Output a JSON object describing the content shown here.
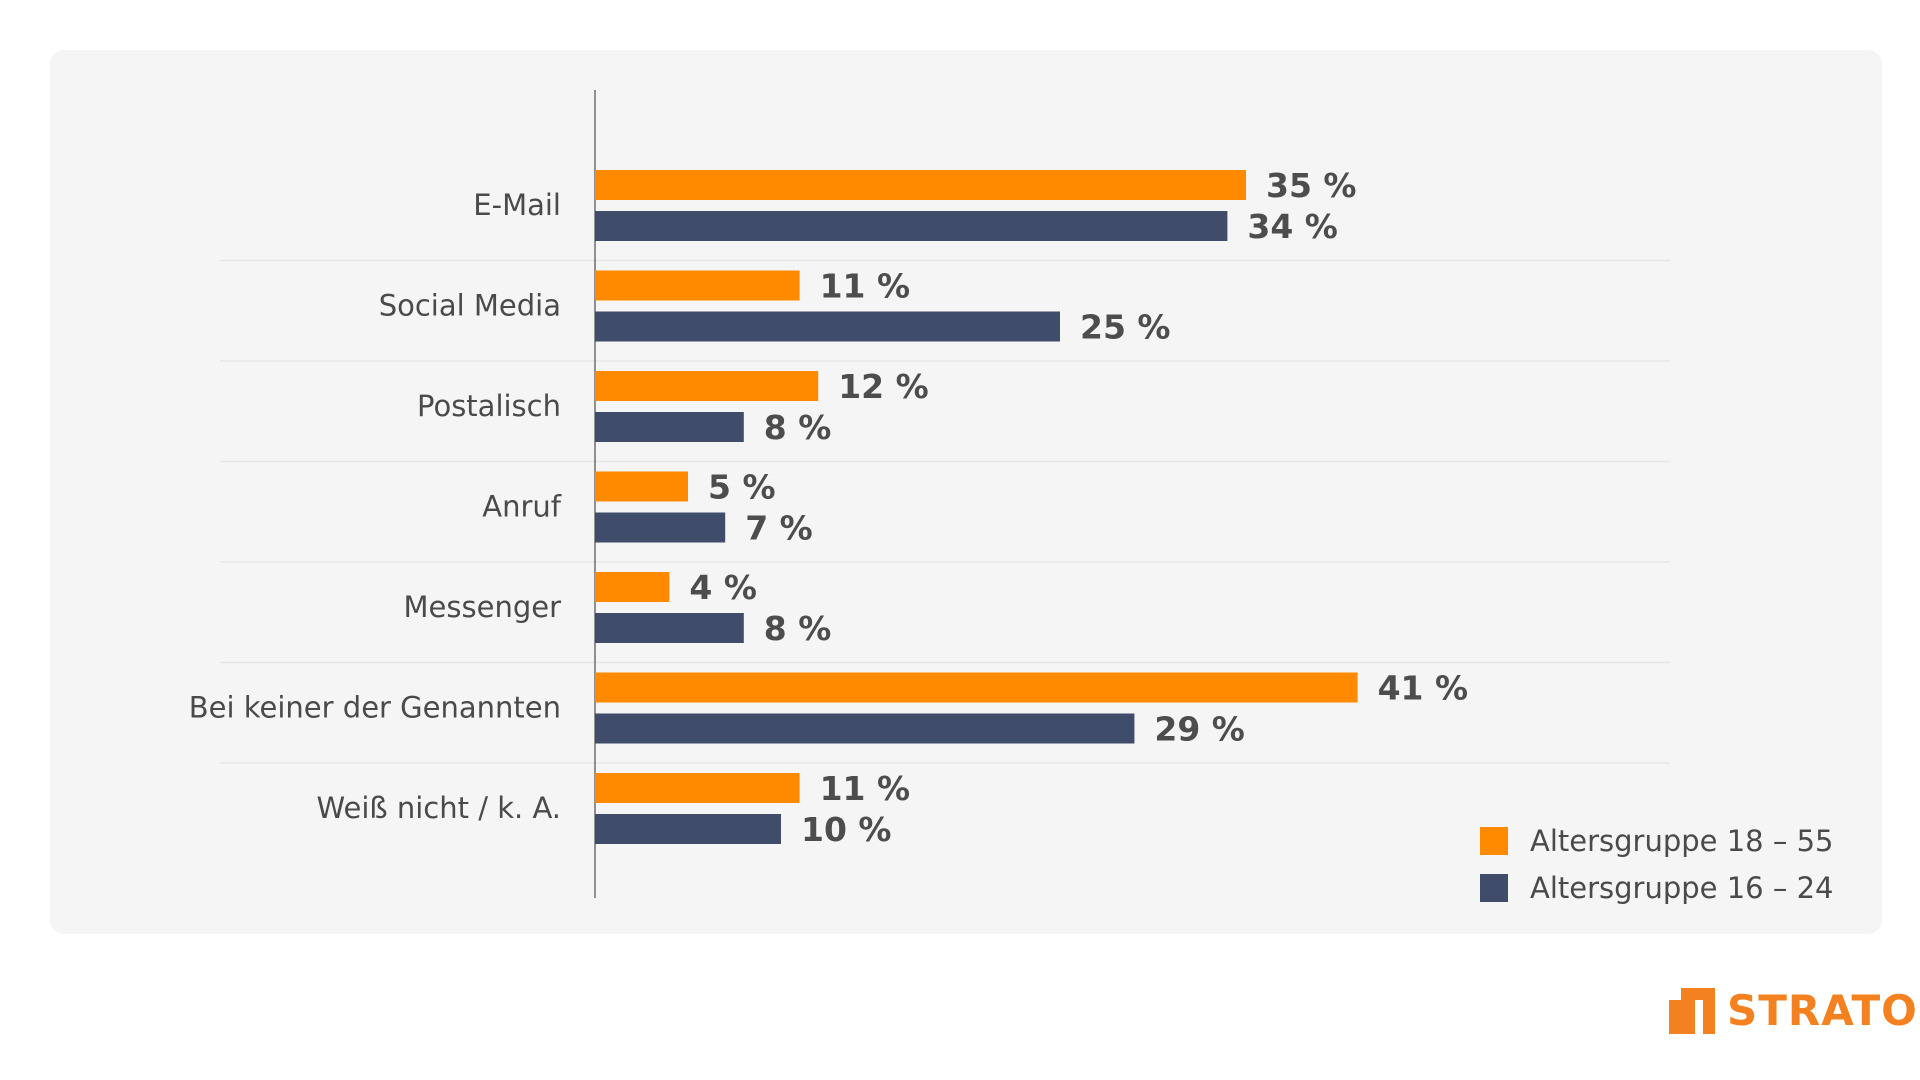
{
  "chart_data": {
    "type": "bar",
    "orientation": "horizontal",
    "categories": [
      "E-Mail",
      "Social Media",
      "Postalisch",
      "Anruf",
      "Messenger",
      "Bei keiner der Genannten",
      "Weiß nicht / k. A."
    ],
    "series": [
      {
        "name": "Altersgruppe 18 – 55",
        "color": "#ff8a00",
        "values": [
          35,
          11,
          12,
          5,
          4,
          41,
          11
        ],
        "labels": [
          "35 %",
          "11 %",
          "12 %",
          "5 %",
          "4 %",
          "41 %",
          "11 %"
        ]
      },
      {
        "name": "Altersgruppe 16 – 24",
        "color": "#3f4c6a",
        "values": [
          34,
          25,
          8,
          7,
          8,
          29,
          10
        ],
        "labels": [
          "34 %",
          "25 %",
          "8 %",
          "7 %",
          "8 %",
          "29 %",
          "10 %"
        ]
      }
    ],
    "xlim": [
      0,
      45
    ],
    "legend_position": "bottom-right",
    "grid": false
  },
  "logo": {
    "text": "STRATO",
    "color": "#f48120"
  }
}
